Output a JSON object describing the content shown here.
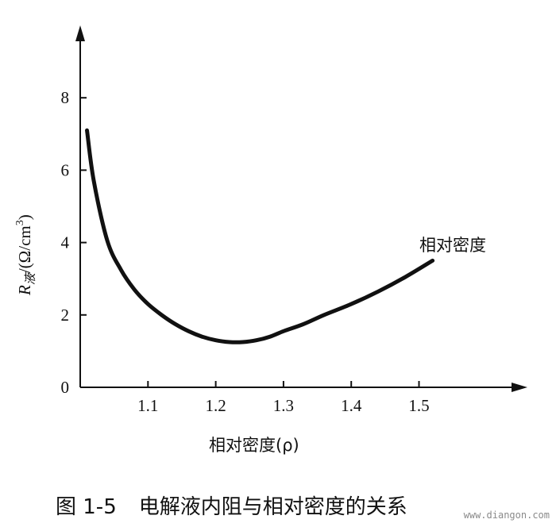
{
  "chart_data": {
    "type": "line",
    "title": "",
    "xlabel": "相对密度(ρ)",
    "ylabel": {
      "symbol": "R",
      "subscript": "液",
      "unit": "/(Ω/cm",
      "superscript": "3",
      "close": ")"
    },
    "xlim": [
      1.0,
      1.66
    ],
    "ylim": [
      0,
      10
    ],
    "xticks": [
      1.1,
      1.2,
      1.3,
      1.4,
      1.5
    ],
    "xtick_labels": [
      "1.1",
      "1.2",
      "1.3",
      "1.4",
      "1.5"
    ],
    "yticks": [
      0,
      2,
      4,
      6,
      8
    ],
    "ytick_labels": [
      "0",
      "2",
      "4",
      "6",
      "8"
    ],
    "grid": false,
    "series": [
      {
        "name": "相对密度",
        "x": [
          1.01,
          1.02,
          1.04,
          1.06,
          1.08,
          1.1,
          1.12,
          1.14,
          1.16,
          1.18,
          1.2,
          1.22,
          1.24,
          1.26,
          1.28,
          1.3,
          1.33,
          1.36,
          1.4,
          1.44,
          1.48,
          1.52
        ],
        "y": [
          7.1,
          5.7,
          4.05,
          3.25,
          2.7,
          2.3,
          2.0,
          1.75,
          1.55,
          1.4,
          1.3,
          1.25,
          1.25,
          1.3,
          1.4,
          1.55,
          1.75,
          2.0,
          2.3,
          2.65,
          3.05,
          3.5
        ]
      }
    ]
  },
  "caption": {
    "figure_number": "图 1-5",
    "title": "电解液内阻与相对密度的关系"
  },
  "watermark": "www.diangon.com"
}
